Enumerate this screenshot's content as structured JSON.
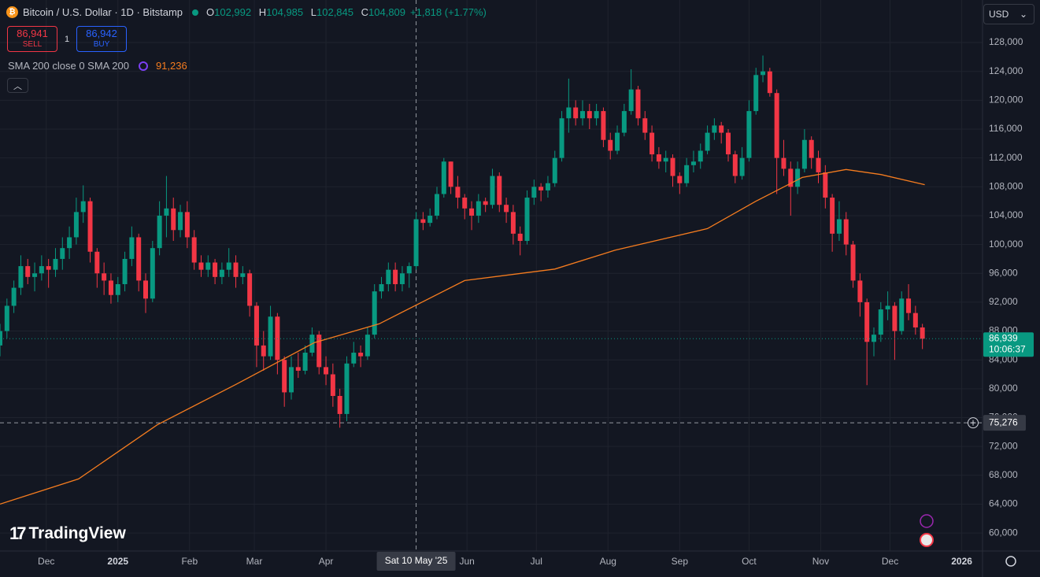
{
  "header": {
    "symbol": "Bitcoin / U.S. Dollar · 1D · Bitstamp",
    "ohlc": [
      {
        "key": "O",
        "value": "102,992"
      },
      {
        "key": "H",
        "value": "104,985"
      },
      {
        "key": "L",
        "value": "102,845"
      },
      {
        "key": "C",
        "value": "104,809"
      }
    ],
    "change": "+1,818 (+1.77%)",
    "sell": {
      "price": "86,941",
      "label": "SELL"
    },
    "spread": "1",
    "buy": {
      "price": "86,942",
      "label": "BUY"
    },
    "indicator": {
      "name": "SMA 200 close 0 SMA 200",
      "value": "91,236"
    },
    "currency": "USD",
    "watermark": "TradingView"
  },
  "chart_data": {
    "type": "candlestick",
    "up_color": "#089981",
    "down_color": "#f23645",
    "grid": true,
    "xlim": [
      -20,
      405
    ],
    "ylim": [
      57500,
      133900
    ],
    "xticks": [
      {
        "value": 0,
        "label": "Dec"
      },
      {
        "value": 31,
        "label": "2025"
      },
      {
        "value": 62,
        "label": "Feb"
      },
      {
        "value": 90,
        "label": "Mar"
      },
      {
        "value": 121,
        "label": "Apr"
      },
      {
        "value": 182,
        "label": "Jun"
      },
      {
        "value": 212,
        "label": "Jul"
      },
      {
        "value": 243,
        "label": "Aug"
      },
      {
        "value": 274,
        "label": "Sep"
      },
      {
        "value": 304,
        "label": "Oct"
      },
      {
        "value": 335,
        "label": "Nov"
      },
      {
        "value": 365,
        "label": "Dec"
      },
      {
        "value": 396,
        "label": "2026"
      }
    ],
    "yticks": [
      {
        "value": 60000,
        "label": "60,000"
      },
      {
        "value": 64000,
        "label": "64,000"
      },
      {
        "value": 68000,
        "label": "68,000"
      },
      {
        "value": 72000,
        "label": "72,000"
      },
      {
        "value": 76000,
        "label": "76,000"
      },
      {
        "value": 80000,
        "label": "80,000"
      },
      {
        "value": 84000,
        "label": "84,000"
      },
      {
        "value": 88000,
        "label": "88,000"
      },
      {
        "value": 92000,
        "label": "92,000"
      },
      {
        "value": 96000,
        "label": "96,000"
      },
      {
        "value": 100000,
        "label": "100,000"
      },
      {
        "value": 104000,
        "label": "104,000"
      },
      {
        "value": 108000,
        "label": "108,000"
      },
      {
        "value": 112000,
        "label": "112,000"
      },
      {
        "value": 116000,
        "label": "116,000"
      },
      {
        "value": 120000,
        "label": "120,000"
      },
      {
        "value": 124000,
        "label": "124,000"
      },
      {
        "value": 128000,
        "label": "128,000"
      }
    ],
    "x": [
      -20,
      -17,
      -14,
      -11,
      -8,
      -5,
      -2,
      1,
      4,
      7,
      10,
      13,
      16,
      19,
      22,
      25,
      28,
      31,
      34,
      37,
      40,
      43,
      46,
      49,
      52,
      55,
      58,
      61,
      64,
      67,
      70,
      73,
      76,
      79,
      82,
      85,
      88,
      91,
      94,
      97,
      100,
      103,
      106,
      109,
      112,
      115,
      118,
      121,
      124,
      127,
      130,
      133,
      136,
      139,
      142,
      145,
      148,
      151,
      154,
      157,
      160,
      163,
      166,
      169,
      172,
      175,
      178,
      181,
      184,
      187,
      190,
      193,
      196,
      199,
      202,
      205,
      208,
      211,
      214,
      217,
      220,
      223,
      226,
      229,
      232,
      235,
      238,
      241,
      244,
      247,
      250,
      253,
      256,
      259,
      262,
      265,
      268,
      271,
      274,
      277,
      280,
      283,
      286,
      289,
      292,
      295,
      298,
      301,
      304,
      307,
      310,
      313,
      316,
      319,
      322,
      325,
      328,
      331,
      334,
      337,
      340,
      343,
      346,
      349,
      352,
      355,
      358,
      361,
      364,
      367,
      370,
      373,
      376,
      379
    ],
    "open": [
      86000,
      88000,
      91500,
      94000,
      97000,
      95500,
      96000,
      97000,
      96500,
      98000,
      99500,
      101000,
      104500,
      106000,
      99000,
      96000,
      95000,
      93000,
      94500,
      98000,
      101000,
      95000,
      92500,
      99500,
      104000,
      105000,
      102000,
      104500,
      101000,
      97500,
      96500,
      97500,
      95500,
      96500,
      97500,
      95500,
      96000,
      91500,
      86000,
      84500,
      90000,
      84000,
      79500,
      83000,
      82500,
      85000,
      87500,
      83000,
      82000,
      79000,
      76500,
      83500,
      85000,
      84500,
      87500,
      93500,
      94500,
      96500,
      94500,
      96000,
      97000,
      103500,
      103000,
      104000,
      107000,
      111500,
      108000,
      106500,
      105000,
      104000,
      106000,
      105500,
      109500,
      105500,
      104500,
      101500,
      100500,
      106500,
      108000,
      107500,
      108500,
      112000,
      117500,
      119000,
      117500,
      118500,
      117500,
      118500,
      114500,
      113000,
      115500,
      118500,
      121500,
      117500,
      115500,
      112500,
      111500,
      112000,
      109500,
      108500,
      111000,
      111500,
      113000,
      115500,
      116500,
      115500,
      112500,
      109500,
      112000,
      118500,
      123500,
      124000,
      121000,
      112000,
      110500,
      108000,
      110500,
      114500,
      112000,
      110000,
      106500,
      101500,
      103500,
      100000,
      95000,
      92000,
      86500,
      87500,
      91000,
      91500,
      88000,
      92500,
      90500,
      88500
    ],
    "high": [
      89000,
      92500,
      95000,
      98500,
      98000,
      97500,
      98500,
      98000,
      99500,
      101000,
      102500,
      106500,
      108200,
      106500,
      99500,
      97500,
      96000,
      95500,
      99000,
      102500,
      101500,
      96000,
      100500,
      106000,
      109500,
      106500,
      105500,
      106000,
      102000,
      98500,
      98500,
      98000,
      97500,
      99500,
      98500,
      97000,
      96500,
      92000,
      88000,
      91500,
      90500,
      84500,
      84500,
      85000,
      86000,
      88500,
      88000,
      84500,
      83500,
      80000,
      84500,
      86500,
      86000,
      88500,
      94500,
      95500,
      97500,
      97500,
      97000,
      97500,
      104500,
      104500,
      105000,
      108000,
      112000,
      111500,
      109500,
      107000,
      106000,
      107000,
      106500,
      110500,
      110000,
      106500,
      105500,
      102500,
      107500,
      109000,
      108500,
      109500,
      113000,
      118500,
      123000,
      120000,
      120000,
      119500,
      119500,
      119000,
      115500,
      116500,
      119500,
      124300,
      122000,
      118500,
      116500,
      113500,
      113000,
      112500,
      110000,
      112000,
      113000,
      114000,
      116500,
      117500,
      117000,
      116000,
      113000,
      113500,
      120000,
      124500,
      126200,
      124500,
      121500,
      114500,
      111500,
      111500,
      116000,
      115000,
      113000,
      111000,
      107000,
      106000,
      104500,
      100500,
      96000,
      92500,
      88500,
      92000,
      93500,
      92000,
      93500,
      94500,
      91500,
      89000
    ],
    "low": [
      84500,
      87000,
      90500,
      93000,
      94500,
      93500,
      95000,
      94000,
      95500,
      96500,
      98000,
      100000,
      103000,
      97500,
      94000,
      93000,
      91800,
      92000,
      93500,
      97000,
      93500,
      90500,
      92000,
      98500,
      101000,
      100500,
      101000,
      99500,
      96500,
      95500,
      95500,
      94500,
      94500,
      95500,
      94000,
      94500,
      90000,
      83000,
      82500,
      84000,
      82000,
      77500,
      78500,
      81500,
      82000,
      84500,
      82000,
      80500,
      77500,
      74600,
      75500,
      83000,
      83000,
      84000,
      87000,
      92500,
      93500,
      93500,
      93500,
      94000,
      96500,
      102000,
      102500,
      103500,
      106500,
      107000,
      105000,
      103500,
      102000,
      103000,
      104500,
      105000,
      104500,
      103000,
      100000,
      98500,
      100000,
      105500,
      106000,
      106500,
      108000,
      111500,
      115500,
      116500,
      116500,
      116000,
      116500,
      113500,
      111800,
      112500,
      115000,
      118000,
      116500,
      114500,
      111500,
      110500,
      110000,
      108000,
      107000,
      108000,
      110000,
      110500,
      112500,
      114500,
      114000,
      111500,
      108500,
      109000,
      111500,
      118000,
      122500,
      120500,
      107000,
      109500,
      104000,
      107000,
      110000,
      110500,
      108500,
      105000,
      99000,
      100500,
      98500,
      94000,
      90000,
      80500,
      84500,
      86500,
      89500,
      84000,
      87500,
      89500,
      87500,
      85500
    ],
    "close": [
      88000,
      91500,
      94000,
      97000,
      95500,
      96000,
      97000,
      96500,
      98000,
      99500,
      101000,
      104500,
      106000,
      99000,
      96000,
      95000,
      93000,
      94500,
      98000,
      101000,
      95000,
      92500,
      99500,
      104000,
      105000,
      102000,
      104500,
      101000,
      97500,
      96500,
      97500,
      95500,
      96500,
      97500,
      95500,
      96000,
      91500,
      86000,
      84500,
      90000,
      84000,
      79500,
      83000,
      82500,
      85000,
      87500,
      83000,
      82000,
      79000,
      76500,
      83500,
      85000,
      84500,
      87500,
      93500,
      94500,
      96500,
      94500,
      96000,
      97000,
      103500,
      103000,
      104000,
      107000,
      111500,
      108000,
      106500,
      105000,
      104000,
      106000,
      105500,
      109500,
      105500,
      104500,
      101500,
      100500,
      106500,
      108000,
      107500,
      108500,
      112000,
      117500,
      119000,
      117500,
      118500,
      117500,
      118500,
      114500,
      113000,
      115500,
      118500,
      121500,
      117500,
      115500,
      112500,
      111500,
      112000,
      109500,
      108500,
      111000,
      111500,
      113000,
      115500,
      116500,
      115500,
      112500,
      109500,
      112000,
      118500,
      123500,
      124000,
      121000,
      112000,
      110500,
      108000,
      110500,
      114500,
      112000,
      110000,
      106500,
      101500,
      103500,
      100000,
      95000,
      92000,
      86500,
      87500,
      91000,
      91500,
      88000,
      92500,
      90500,
      88500,
      86939
    ],
    "sma": {
      "color": "#f57c1f",
      "x": [
        -20,
        14,
        48,
        82,
        116,
        144,
        181,
        220,
        246,
        286,
        307,
        327,
        346,
        361,
        380
      ],
      "values": [
        64000,
        67500,
        75000,
        80600,
        86400,
        89000,
        95000,
        96600,
        99200,
        102200,
        106000,
        109300,
        110400,
        109700,
        108300
      ]
    },
    "last_price": {
      "value": 86939,
      "label": "86,939",
      "countdown": "10:06:37"
    },
    "crosshair": {
      "x": 160,
      "x_label": "Sat 10 May '25",
      "y": 75276,
      "y_label": "75,276"
    }
  }
}
